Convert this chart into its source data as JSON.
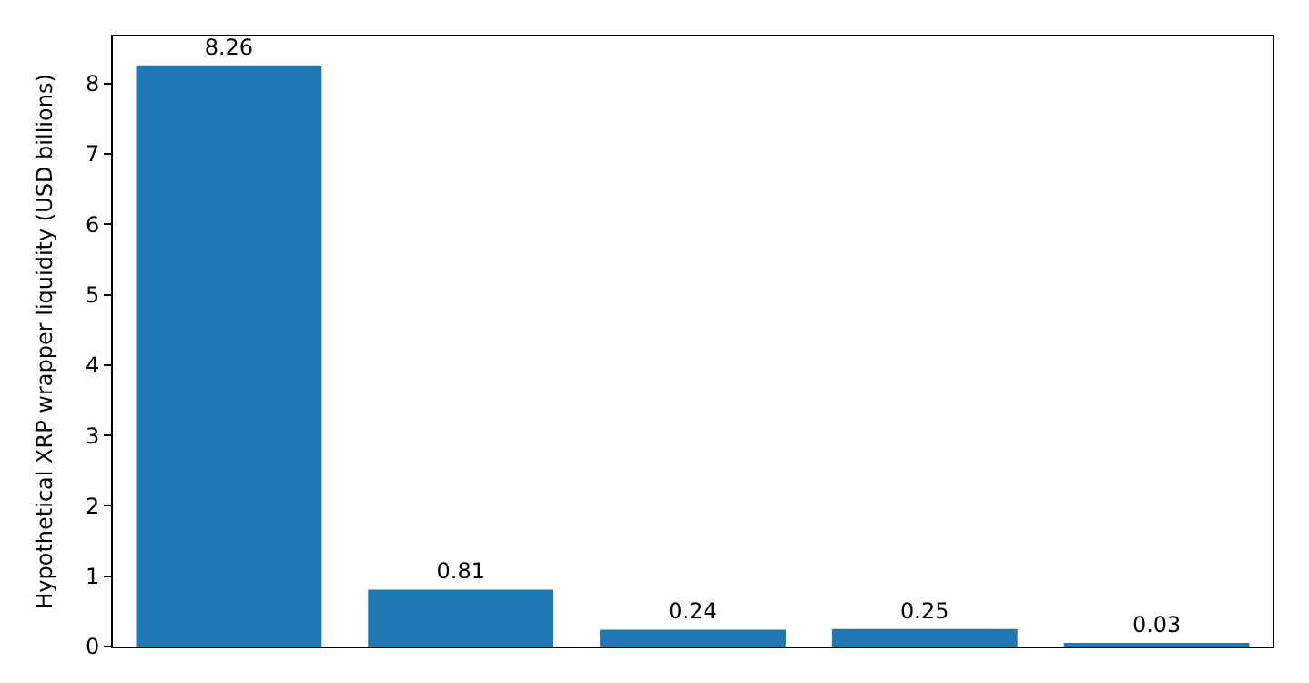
{
  "chart_data": {
    "type": "bar",
    "ylabel": "Hypothetical XRP wrapper liquidity (USD billions)",
    "categories": [
      null,
      null,
      null,
      null,
      null
    ],
    "values": [
      8.26,
      0.81,
      0.24,
      0.25,
      0.03
    ],
    "color": "#1f77b4",
    "data_labels": true,
    "ylim": [
      0,
      8.67
    ],
    "yticks": [
      0,
      1,
      2,
      3,
      4,
      5,
      6,
      7,
      8
    ],
    "tick_labels": "y"
  }
}
